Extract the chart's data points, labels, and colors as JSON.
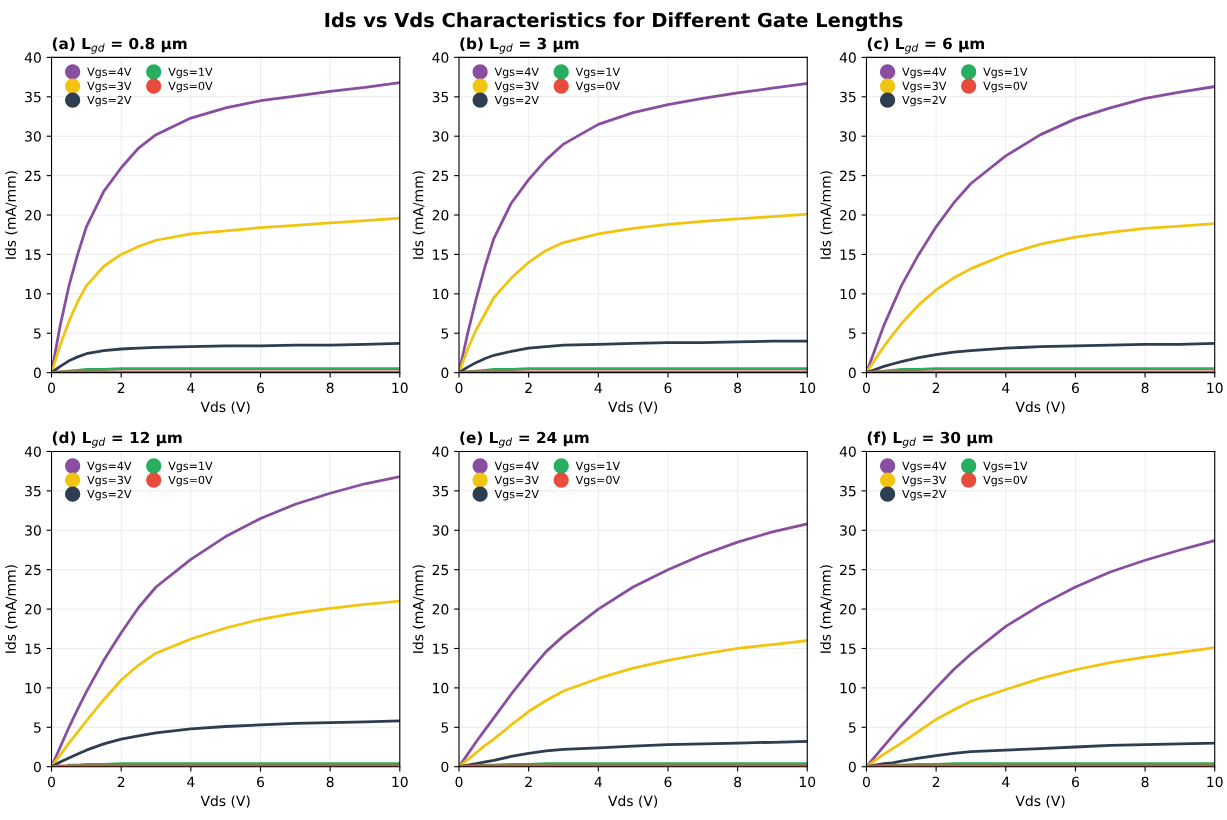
{
  "chart_data": [
    {
      "type": "line",
      "title": "(a) L$_{gd}$ = 0.8 µm",
      "annotations": [
        "Ids vs Vds Characteristics for Different Gate Lengths"
      ],
      "xlabel": "Vds (V)",
      "ylabel": "Ids (mA/mm)",
      "xlim": [
        0,
        10
      ],
      "ylim": [
        0,
        40
      ],
      "xticks": [
        0,
        2,
        4,
        6,
        8,
        10
      ],
      "yticks": [
        0,
        5,
        10,
        15,
        20,
        25,
        30,
        35,
        40
      ],
      "grid": true,
      "legend": "top left",
      "line_style": "solid",
      "x": [
        0,
        0.25,
        0.5,
        0.75,
        1,
        1.5,
        2,
        2.5,
        3,
        4,
        5,
        6,
        7,
        8,
        9,
        10
      ],
      "series": [
        {
          "name": "Vgs=4V",
          "color": "#884ea0",
          "values": [
            0,
            6,
            11,
            15,
            18.5,
            23,
            26,
            28.5,
            30.2,
            32.3,
            33.6,
            34.5,
            35.1,
            35.7,
            36.2,
            36.8
          ]
        },
        {
          "name": "Vgs=3V",
          "color": "#f1c40f",
          "values": [
            0,
            3.5,
            6.5,
            9,
            11,
            13.5,
            15,
            16,
            16.8,
            17.6,
            18,
            18.4,
            18.7,
            19,
            19.3,
            19.6
          ]
        },
        {
          "name": "Vgs=2V",
          "color": "#2c3e50",
          "values": [
            0,
            0.8,
            1.5,
            2,
            2.4,
            2.8,
            3.0,
            3.1,
            3.2,
            3.3,
            3.4,
            3.4,
            3.5,
            3.5,
            3.6,
            3.7
          ]
        },
        {
          "name": "Vgs=1V",
          "color": "#27ae60",
          "values": [
            0,
            0.1,
            0.2,
            0.3,
            0.4,
            0.4,
            0.5,
            0.5,
            0.5,
            0.5,
            0.5,
            0.5,
            0.5,
            0.5,
            0.5,
            0.5
          ]
        },
        {
          "name": "Vgs=0V",
          "color": "#e74c3c",
          "values": [
            0,
            0.1,
            0.1,
            0.1,
            0.1,
            0.1,
            0.1,
            0.1,
            0.1,
            0.1,
            0.1,
            0.1,
            0.1,
            0.1,
            0.1,
            0.1
          ]
        }
      ]
    },
    {
      "type": "line",
      "title": "(b) L$_{gd}$ = 3 µm",
      "xlabel": "Vds (V)",
      "ylabel": "Ids (mA/mm)",
      "xlim": [
        0,
        10
      ],
      "ylim": [
        0,
        40
      ],
      "xticks": [
        0,
        2,
        4,
        6,
        8,
        10
      ],
      "yticks": [
        0,
        5,
        10,
        15,
        20,
        25,
        30,
        35,
        40
      ],
      "grid": true,
      "legend": "top left",
      "line_style": "solid",
      "x": [
        0,
        0.25,
        0.5,
        0.75,
        1,
        1.5,
        2,
        2.5,
        3,
        4,
        5,
        6,
        7,
        8,
        9,
        10
      ],
      "series": [
        {
          "name": "Vgs=4V",
          "color": "#884ea0",
          "values": [
            0,
            5,
            9.5,
            13.5,
            17,
            21.5,
            24.5,
            27,
            29,
            31.5,
            33,
            34,
            34.8,
            35.5,
            36.1,
            36.7
          ]
        },
        {
          "name": "Vgs=3V",
          "color": "#f1c40f",
          "values": [
            0,
            3,
            5.5,
            7.5,
            9.5,
            12,
            14,
            15.5,
            16.5,
            17.6,
            18.3,
            18.8,
            19.2,
            19.5,
            19.8,
            20.1
          ]
        },
        {
          "name": "Vgs=2V",
          "color": "#2c3e50",
          "values": [
            0,
            0.7,
            1.3,
            1.8,
            2.2,
            2.7,
            3.1,
            3.3,
            3.5,
            3.6,
            3.7,
            3.8,
            3.8,
            3.9,
            4.0,
            4.0
          ]
        },
        {
          "name": "Vgs=1V",
          "color": "#27ae60",
          "values": [
            0,
            0.1,
            0.2,
            0.3,
            0.4,
            0.4,
            0.5,
            0.5,
            0.5,
            0.5,
            0.5,
            0.5,
            0.5,
            0.5,
            0.5,
            0.5
          ]
        },
        {
          "name": "Vgs=0V",
          "color": "#e74c3c",
          "values": [
            0,
            0.1,
            0.1,
            0.1,
            0.1,
            0.1,
            0.1,
            0.1,
            0.1,
            0.1,
            0.1,
            0.1,
            0.1,
            0.1,
            0.1,
            0.1
          ]
        }
      ]
    },
    {
      "type": "line",
      "title": "(c) L$_{gd}$ = 6 µm",
      "xlabel": "Vds (V)",
      "ylabel": "Ids (mA/mm)",
      "xlim": [
        0,
        10
      ],
      "ylim": [
        0,
        40
      ],
      "xticks": [
        0,
        2,
        4,
        6,
        8,
        10
      ],
      "yticks": [
        0,
        5,
        10,
        15,
        20,
        25,
        30,
        35,
        40
      ],
      "grid": true,
      "legend": "top left",
      "line_style": "solid",
      "x": [
        0,
        0.25,
        0.5,
        0.75,
        1,
        1.5,
        2,
        2.5,
        3,
        4,
        5,
        6,
        7,
        8,
        9,
        10
      ],
      "series": [
        {
          "name": "Vgs=4V",
          "color": "#884ea0",
          "values": [
            0,
            3,
            6,
            8.5,
            11,
            15,
            18.5,
            21.5,
            24,
            27.5,
            30.2,
            32.2,
            33.6,
            34.8,
            35.6,
            36.3
          ]
        },
        {
          "name": "Vgs=3V",
          "color": "#f1c40f",
          "values": [
            0,
            1.7,
            3.3,
            4.8,
            6.2,
            8.6,
            10.5,
            12,
            13.2,
            15,
            16.3,
            17.2,
            17.8,
            18.3,
            18.6,
            18.9
          ]
        },
        {
          "name": "Vgs=2V",
          "color": "#2c3e50",
          "values": [
            0,
            0.4,
            0.8,
            1.1,
            1.4,
            1.9,
            2.3,
            2.6,
            2.8,
            3.1,
            3.3,
            3.4,
            3.5,
            3.6,
            3.6,
            3.7
          ]
        },
        {
          "name": "Vgs=1V",
          "color": "#27ae60",
          "values": [
            0,
            0.1,
            0.2,
            0.3,
            0.4,
            0.4,
            0.5,
            0.5,
            0.5,
            0.5,
            0.5,
            0.5,
            0.5,
            0.5,
            0.5,
            0.5
          ]
        },
        {
          "name": "Vgs=0V",
          "color": "#e74c3c",
          "values": [
            0,
            0.1,
            0.1,
            0.1,
            0.1,
            0.1,
            0.1,
            0.1,
            0.1,
            0.1,
            0.1,
            0.1,
            0.1,
            0.1,
            0.1,
            0.1
          ]
        }
      ]
    },
    {
      "type": "line",
      "title": "(d) L$_{gd}$ = 12 µm",
      "xlabel": "Vds (V)",
      "ylabel": "Ids (mA/mm)",
      "xlim": [
        0,
        10
      ],
      "ylim": [
        0,
        40
      ],
      "xticks": [
        0,
        2,
        4,
        6,
        8,
        10
      ],
      "yticks": [
        0,
        5,
        10,
        15,
        20,
        25,
        30,
        35,
        40
      ],
      "grid": true,
      "legend": "top left",
      "line_style": "solid",
      "x": [
        0,
        0.25,
        0.5,
        0.75,
        1,
        1.5,
        2,
        2.5,
        3,
        4,
        5,
        6,
        7,
        8,
        9,
        10
      ],
      "series": [
        {
          "name": "Vgs=4V",
          "color": "#884ea0",
          "values": [
            0,
            2.5,
            5,
            7.3,
            9.5,
            13.5,
            17,
            20.2,
            22.8,
            26.3,
            29.2,
            31.5,
            33.3,
            34.7,
            35.9,
            36.8
          ]
        },
        {
          "name": "Vgs=3V",
          "color": "#f1c40f",
          "values": [
            0,
            1.5,
            3,
            4.4,
            5.8,
            8.5,
            11,
            12.9,
            14.4,
            16.2,
            17.6,
            18.7,
            19.5,
            20.1,
            20.6,
            21
          ]
        },
        {
          "name": "Vgs=2V",
          "color": "#2c3e50",
          "values": [
            0,
            0.6,
            1.1,
            1.6,
            2.1,
            2.9,
            3.5,
            3.9,
            4.3,
            4.8,
            5.1,
            5.3,
            5.5,
            5.6,
            5.7,
            5.8
          ]
        },
        {
          "name": "Vgs=1V",
          "color": "#27ae60",
          "values": [
            null,
            null,
            0.2,
            0.2,
            0.3,
            0.3,
            0.4,
            0.4,
            0.4,
            0.4,
            0.4,
            0.4,
            0.4,
            0.4,
            0.4,
            0.4
          ]
        },
        {
          "name": "Vgs=0V",
          "color": "#e74c3c",
          "values": [
            0,
            0.1,
            0.1,
            0.1,
            0.1,
            0.1,
            0.1,
            0.1,
            0.1,
            0.1,
            0.1,
            0.1,
            0.1,
            0.1,
            0.1,
            0.1
          ]
        }
      ]
    },
    {
      "type": "line",
      "title": "(e) L$_{gd}$ = 24 µm",
      "xlabel": "Vds (V)",
      "ylabel": "Ids (mA/mm)",
      "xlim": [
        0,
        10
      ],
      "ylim": [
        0,
        40
      ],
      "xticks": [
        0,
        2,
        4,
        6,
        8,
        10
      ],
      "yticks": [
        0,
        5,
        10,
        15,
        20,
        25,
        30,
        35,
        40
      ],
      "grid": true,
      "legend": "top left",
      "line_style": "solid",
      "x": [
        0,
        0.25,
        0.5,
        0.75,
        1,
        1.5,
        2,
        2.5,
        3,
        4,
        5,
        6,
        7,
        8,
        9,
        10
      ],
      "series": [
        {
          "name": "Vgs=4V",
          "color": "#884ea0",
          "values": [
            0,
            1.6,
            3.2,
            4.7,
            6.2,
            9.2,
            12,
            14.6,
            16.6,
            20,
            22.8,
            25,
            26.9,
            28.5,
            29.8,
            30.8
          ]
        },
        {
          "name": "Vgs=3V",
          "color": "#f1c40f",
          "values": [
            0,
            0.9,
            1.8,
            2.7,
            3.5,
            5.3,
            7,
            8.4,
            9.6,
            11.2,
            12.5,
            13.5,
            14.3,
            15,
            15.5,
            16
          ]
        },
        {
          "name": "Vgs=2V",
          "color": "#2c3e50",
          "values": [
            0,
            0.2,
            0.4,
            0.6,
            0.8,
            1.3,
            1.7,
            2,
            2.2,
            2.4,
            2.6,
            2.8,
            2.9,
            3.0,
            3.1,
            3.2
          ]
        },
        {
          "name": "Vgs=1V",
          "color": "#27ae60",
          "values": [
            null,
            null,
            0.1,
            0.2,
            0.2,
            0.3,
            0.3,
            0.4,
            0.4,
            0.4,
            0.4,
            0.4,
            0.4,
            0.4,
            0.4,
            0.4
          ]
        },
        {
          "name": "Vgs=0V",
          "color": "#e74c3c",
          "values": [
            0,
            0.1,
            0.1,
            0.1,
            0.1,
            0.1,
            0.1,
            0.1,
            0.1,
            0.1,
            0.1,
            0.1,
            0.1,
            0.1,
            0.1,
            0.1
          ]
        }
      ]
    },
    {
      "type": "line",
      "title": "(f) L$_{gd}$ = 30 µm",
      "xlabel": "Vds (V)",
      "ylabel": "Ids (mA/mm)",
      "xlim": [
        0,
        10
      ],
      "ylim": [
        0,
        40
      ],
      "xticks": [
        0,
        2,
        4,
        6,
        8,
        10
      ],
      "yticks": [
        0,
        5,
        10,
        15,
        20,
        25,
        30,
        35,
        40
      ],
      "grid": true,
      "legend": "top left",
      "line_style": "solid",
      "x": [
        0,
        0.25,
        0.5,
        0.75,
        1,
        1.5,
        2,
        2.5,
        3,
        4,
        5,
        6,
        7,
        8,
        9,
        10
      ],
      "series": [
        {
          "name": "Vgs=4V",
          "color": "#884ea0",
          "values": [
            0,
            1.3,
            2.6,
            3.9,
            5.2,
            7.6,
            10,
            12.3,
            14.3,
            17.8,
            20.5,
            22.8,
            24.7,
            26.2,
            27.5,
            28.7
          ]
        },
        {
          "name": "Vgs=3V",
          "color": "#f1c40f",
          "values": [
            0,
            0.8,
            1.6,
            2.3,
            3,
            4.5,
            6,
            7.2,
            8.3,
            9.8,
            11.2,
            12.3,
            13.2,
            13.9,
            14.5,
            15.1
          ]
        },
        {
          "name": "Vgs=2V",
          "color": "#2c3e50",
          "values": [
            0,
            0.2,
            0.4,
            0.5,
            0.7,
            1.1,
            1.4,
            1.7,
            1.9,
            2.1,
            2.3,
            2.5,
            2.7,
            2.8,
            2.9,
            3.0
          ]
        },
        {
          "name": "Vgs=1V",
          "color": "#27ae60",
          "values": [
            null,
            null,
            0.1,
            0.2,
            0.2,
            0.3,
            0.3,
            0.4,
            0.4,
            0.4,
            0.4,
            0.4,
            0.4,
            0.4,
            0.4,
            0.4
          ]
        },
        {
          "name": "Vgs=0V",
          "color": "#e74c3c",
          "values": [
            0,
            0.1,
            0.1,
            0.1,
            0.1,
            0.1,
            0.1,
            0.1,
            0.1,
            0.1,
            0.1,
            0.1,
            0.1,
            0.1,
            0.1,
            0.1
          ]
        }
      ]
    }
  ]
}
